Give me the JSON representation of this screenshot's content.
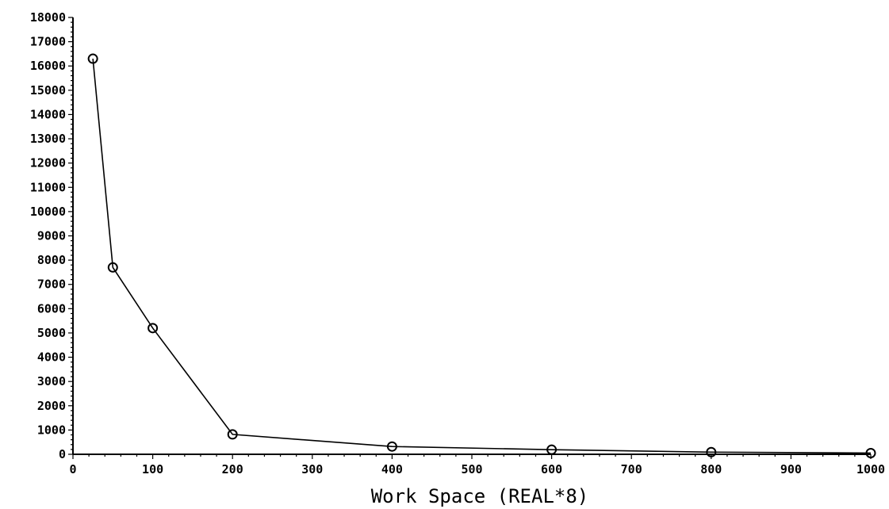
{
  "chart_data": {
    "type": "line",
    "title": "",
    "xlabel": "Work Space (REAL*8)",
    "ylabel": "",
    "xlim": [
      0,
      1000
    ],
    "ylim": [
      0,
      18000
    ],
    "x_ticks": [
      "0",
      "100",
      "200",
      "300",
      "400",
      "500",
      "600",
      "700",
      "800",
      "900",
      "1000"
    ],
    "y_ticks": [
      "0",
      "1000",
      "2000",
      "3000",
      "4000",
      "5000",
      "6000",
      "7000",
      "8000",
      "9000",
      "10000",
      "11000",
      "12000",
      "13000",
      "14000",
      "15000",
      "16000",
      "17000",
      "18000"
    ],
    "grid": false,
    "marker": "circle",
    "series": [
      {
        "name": "",
        "x": [
          25,
          50,
          100,
          200,
          400,
          600,
          800,
          1000
        ],
        "y": [
          16300,
          7700,
          5200,
          820,
          320,
          190,
          90,
          50
        ]
      }
    ]
  }
}
